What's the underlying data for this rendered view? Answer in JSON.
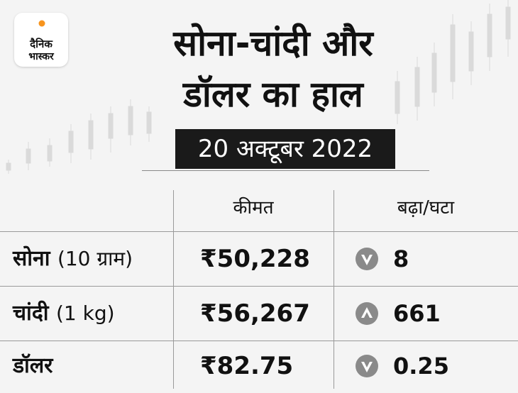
{
  "brand": {
    "line1": "दैनिक",
    "line2": "भास्कर"
  },
  "title": {
    "line1": "सोना-चांदी और",
    "line2": "डॉलर का हाल"
  },
  "date": "20 अक्टूबर 2022",
  "table": {
    "headers": {
      "price": "कीमत",
      "change": "बढ़ा/घटा"
    },
    "rows": [
      {
        "label": "सोना",
        "unit": "(10 ग्राम)",
        "price": "₹50,228",
        "direction": "down",
        "change": "8"
      },
      {
        "label": "चांदी",
        "unit": "(1 kg)",
        "price": "₹56,267",
        "direction": "up",
        "change": "661"
      },
      {
        "label": "डॉलर",
        "unit": "",
        "price": "₹82.75",
        "direction": "down",
        "change": "0.25"
      }
    ]
  },
  "colors": {
    "accent_orange": "#f7941d",
    "badge_bg": "#1a1a1a",
    "arrow_gray": "#8a8a8a",
    "text": "#111111"
  },
  "icons": {
    "logo": "sun-logo-icon",
    "down": "down-arrow-icon",
    "up": "up-arrow-icon"
  }
}
